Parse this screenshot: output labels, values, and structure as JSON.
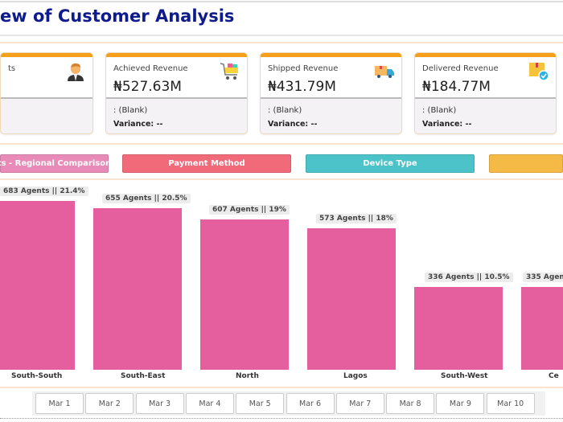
{
  "header": {
    "title": "ew of Customer Analysis"
  },
  "cards": [
    {
      "label": "ts",
      "value": "",
      "blank": "",
      "variance": "",
      "icon": "agent-icon"
    },
    {
      "label": "Achieved Revenue",
      "value": "₦527.63M",
      "blank": ": (Blank)",
      "variance": "Variance: --",
      "icon": "shopping-cart-icon"
    },
    {
      "label": "Shipped Revenue",
      "value": "₦431.79M",
      "blank": ": (Blank)",
      "variance": "Variance: --",
      "icon": "delivery-truck-icon"
    },
    {
      "label": "Delivered Revenue",
      "value": "₦184.77M",
      "blank": ": (Blank)",
      "variance": "Variance: --",
      "icon": "delivered-box-icon"
    }
  ],
  "tabs": [
    {
      "label": "ts - Regional Comparison",
      "color": "#e88bb8"
    },
    {
      "label": "Payment Method",
      "color": "#f06a7a"
    },
    {
      "label": "Device Type",
      "color": "#4bc3c8"
    },
    {
      "label": "",
      "color": "#f5b945"
    }
  ],
  "chart_data": {
    "type": "bar",
    "categories": [
      "South-South",
      "South-East",
      "North",
      "Lagos",
      "South-West",
      "Ce"
    ],
    "values": [
      683,
      655,
      607,
      573,
      336,
      335
    ],
    "data_labels": [
      "683 Agents || 21.4%",
      "655 Agents || 20.5%",
      "607 Agents || 19%",
      "573 Agents || 18%",
      "336 Agents || 10.5%",
      "335 Agen"
    ],
    "color": "#e55f9f",
    "ylim": [
      0,
      683
    ]
  },
  "dates": [
    "Mar 1",
    "Mar 2",
    "Mar 3",
    "Mar 4",
    "Mar 5",
    "Mar 6",
    "Mar 7",
    "Mar 8",
    "Mar 9",
    "Mar 10"
  ]
}
